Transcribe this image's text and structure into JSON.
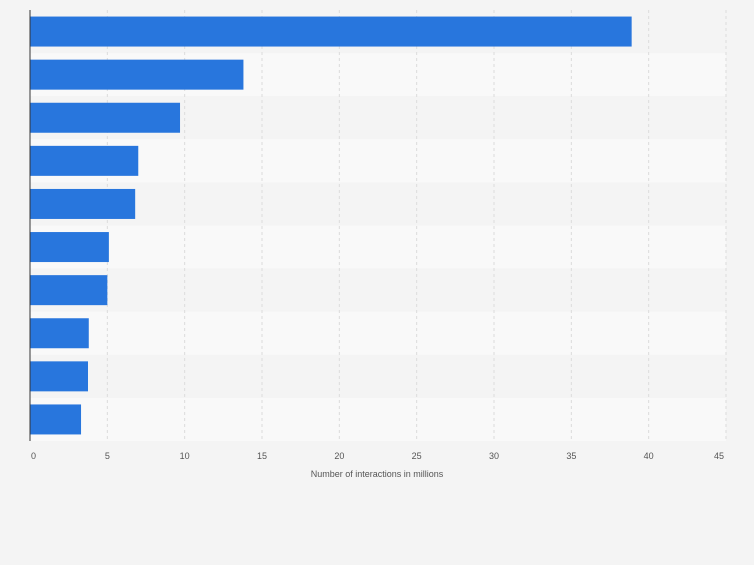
{
  "chart_data": {
    "type": "bar",
    "orientation": "horizontal",
    "categories": [
      "",
      "",
      "",
      "",
      "",
      "",
      "",
      "",
      "",
      ""
    ],
    "values": [
      38.9,
      13.8,
      9.7,
      7.0,
      6.8,
      5.1,
      5.0,
      3.8,
      3.75,
      3.3
    ],
    "xlabel": "Number of interactions in millions",
    "ylabel": "",
    "xlim": [
      0,
      45
    ],
    "xticks": [
      "0",
      "5",
      "10",
      "15",
      "20",
      "25",
      "30",
      "35",
      "40",
      "45"
    ],
    "grid": true,
    "bar_color": "#2876dd",
    "band_colors": [
      "#f4f4f4",
      "#f9f9f9"
    ]
  }
}
